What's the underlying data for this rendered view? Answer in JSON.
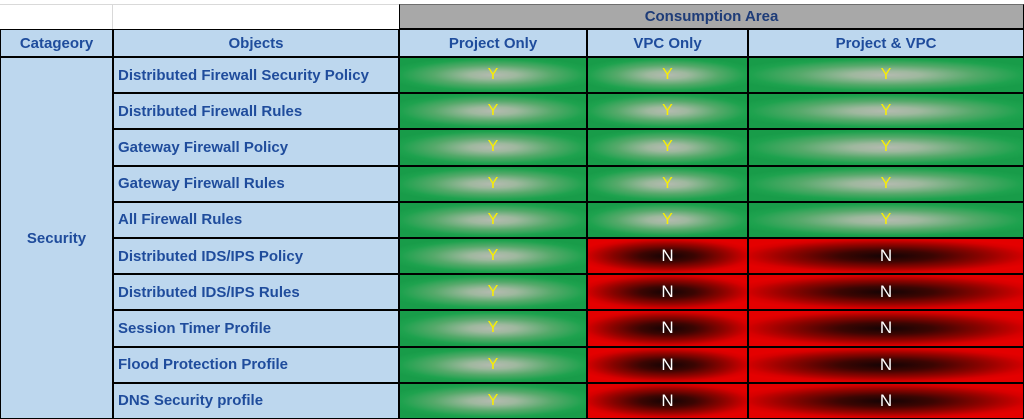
{
  "header": {
    "consumption_area": "Consumption Area",
    "columns": {
      "category": "Catageory",
      "objects": "Objects",
      "project_only": "Project Only",
      "vpc_only": "VPC Only",
      "project_vpc": "Project & VPC"
    }
  },
  "category": {
    "label": "Security"
  },
  "rows": [
    {
      "object": "Distributed Firewall Security Policy",
      "project_only": "Y",
      "vpc_only": "Y",
      "project_vpc": "Y"
    },
    {
      "object": "Distributed Firewall Rules",
      "project_only": "Y",
      "vpc_only": "Y",
      "project_vpc": "Y"
    },
    {
      "object": "Gateway Firewall Policy",
      "project_only": "Y",
      "vpc_only": "Y",
      "project_vpc": "Y"
    },
    {
      "object": "Gateway Firewall Rules",
      "project_only": "Y",
      "vpc_only": "Y",
      "project_vpc": "Y"
    },
    {
      "object": "All Firewall Rules",
      "project_only": "Y",
      "vpc_only": "Y",
      "project_vpc": "Y"
    },
    {
      "object": "Distributed IDS/IPS Policy",
      "project_only": "Y",
      "vpc_only": "N",
      "project_vpc": "N"
    },
    {
      "object": "Distributed IDS/IPS Rules",
      "project_only": "Y",
      "vpc_only": "N",
      "project_vpc": "N"
    },
    {
      "object": "Session Timer Profile",
      "project_only": "Y",
      "vpc_only": "N",
      "project_vpc": "N"
    },
    {
      "object": "Flood Protection Profile",
      "project_only": "Y",
      "vpc_only": "N",
      "project_vpc": "N"
    },
    {
      "object": "DNS Security profile",
      "project_only": "Y",
      "vpc_only": "N",
      "project_vpc": "N"
    }
  ],
  "legend": {
    "yes_value": "Y",
    "no_value": "N"
  },
  "colors": {
    "header_gray": "#A8A8A8",
    "header_blue": "#BDD7EE",
    "text_blue": "#1F4C9C",
    "yes_green": "#1EA24E",
    "no_red": "#E40000",
    "yes_text_yellow": "#F8EF00",
    "no_text_white": "#FFFFFF",
    "border_black": "#000000"
  }
}
